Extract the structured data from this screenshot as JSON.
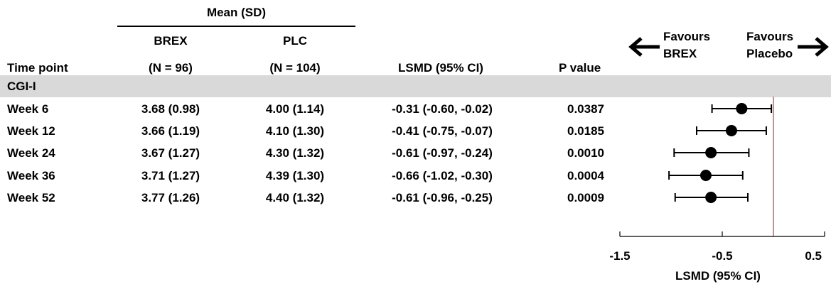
{
  "header": {
    "group_label": "Mean (SD)",
    "col_timepoint": "Time point",
    "col_brex": {
      "line1": "BREX",
      "line2": "(N = 96)"
    },
    "col_plc": {
      "line1": "PLC",
      "line2": "(N = 104)"
    },
    "col_lsmd": "LSMD (95% CI)",
    "col_pvalue": "P value",
    "favours_left": {
      "line1": "Favours",
      "line2": "BREX"
    },
    "favours_right": {
      "line1": "Favours",
      "line2": "Placebo"
    }
  },
  "section": {
    "label": "CGI-I"
  },
  "rows": [
    {
      "timepoint": "Week 6",
      "brex": "3.68 (0.98)",
      "plc": "4.00 (1.14)",
      "lsmd": "-0.31 (-0.60, -0.02)",
      "pvalue": "0.0387"
    },
    {
      "timepoint": "Week 12",
      "brex": "3.66 (1.19)",
      "plc": "4.10 (1.30)",
      "lsmd": "-0.41 (-0.75, -0.07)",
      "pvalue": "0.0185"
    },
    {
      "timepoint": "Week 24",
      "brex": "3.67 (1.27)",
      "plc": "4.30 (1.32)",
      "lsmd": "-0.61 (-0.97, -0.24)",
      "pvalue": "0.0010"
    },
    {
      "timepoint": "Week 36",
      "brex": "3.71 (1.27)",
      "plc": "4.39 (1.30)",
      "lsmd": "-0.66 (-1.02, -0.30)",
      "pvalue": "0.0004"
    },
    {
      "timepoint": "Week 52",
      "brex": "3.77 (1.26)",
      "plc": "4.40 (1.32)",
      "lsmd": "-0.61 (-0.96, -0.25)",
      "pvalue": "0.0009"
    }
  ],
  "chart_data": {
    "type": "scatter",
    "categories": [
      "Week 6",
      "Week 12",
      "Week 24",
      "Week 36",
      "Week 52"
    ],
    "series": [
      {
        "values": [
          -0.31,
          -0.41,
          -0.61,
          -0.66,
          -0.61
        ],
        "ci_lower": [
          -0.6,
          -0.75,
          -0.97,
          -1.02,
          -0.96
        ],
        "ci_upper": [
          -0.02,
          -0.07,
          -0.24,
          -0.3,
          -0.25
        ]
      }
    ],
    "xlim": [
      -1.5,
      0.5
    ],
    "xticks": [
      -1.5,
      -0.5,
      0.5
    ],
    "xtick_labels": [
      "-1.5",
      "-0.5",
      "0.5"
    ],
    "xlabel": "LSMD (95% CI)",
    "reference_line": 0,
    "colors": {
      "marker": "#000000",
      "reference_line": "#e8555a",
      "section_band": "#d9d9d9"
    }
  }
}
